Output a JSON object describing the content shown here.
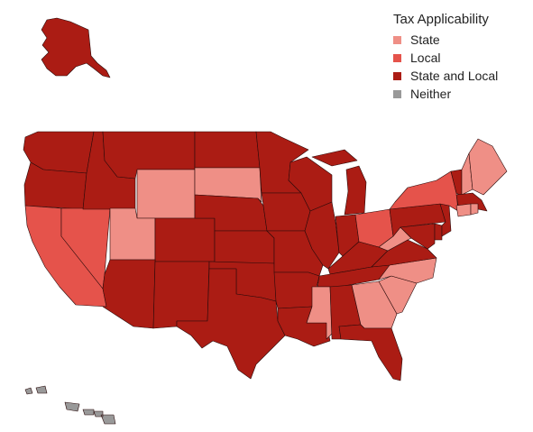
{
  "legend": {
    "title": "Tax Applicability",
    "items": [
      {
        "key": "state",
        "label": "State",
        "color": "#ef8f86"
      },
      {
        "key": "local",
        "label": "Local",
        "color": "#e5534b"
      },
      {
        "key": "state_local",
        "label": "State and Local",
        "color": "#ab1c14"
      },
      {
        "key": "neither",
        "label": "Neither",
        "color": "#999999"
      }
    ]
  },
  "states": {
    "WA": "state_local",
    "OR": "state_local",
    "CA": "local",
    "NV": "local",
    "ID": "state_local",
    "MT": "state_local",
    "WY": "state",
    "UT": "state",
    "AZ": "state_local",
    "CO": "state_local",
    "NM": "state_local",
    "ND": "state_local",
    "SD": "state",
    "NE": "state_local",
    "KS": "state_local",
    "OK": "state_local",
    "TX": "state_local",
    "MN": "state_local",
    "IA": "state_local",
    "MO": "state_local",
    "AR": "state_local",
    "LA": "state_local",
    "WI": "state_local",
    "IL": "state_local",
    "MI": "state_local",
    "IN": "state_local",
    "OH": "local",
    "KY": "state_local",
    "TN": "state_local",
    "MS": "state",
    "AL": "state_local",
    "GA": "state",
    "FL": "state_local",
    "SC": "state",
    "NC": "state",
    "VA": "state_local",
    "WV": "state",
    "PA": "state_local",
    "NY": "local",
    "VT": "state_local",
    "NH": "state",
    "ME": "state",
    "MA": "state_local",
    "CT": "state",
    "RI": "state",
    "NJ": "state_local",
    "DE": "state_local",
    "MD": "state_local",
    "AK": "state_local",
    "HI": "neither"
  }
}
